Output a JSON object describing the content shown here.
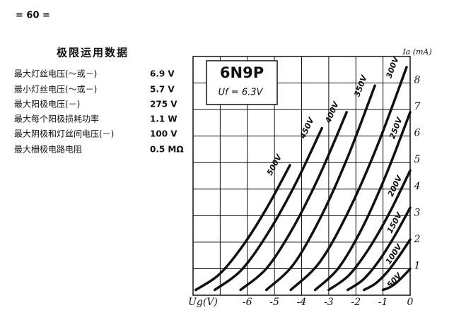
{
  "page_number": "= 60 =",
  "table": {
    "title": "极限运用数据",
    "rows": [
      [
        "最大灯丝电压(～或－)",
        "6.9 V"
      ],
      [
        "最小灯丝电压(～或－)",
        "5.7 V"
      ],
      [
        "最大阳极电压(－)",
        "275 V"
      ],
      [
        "最大每个阳极损耗功率",
        "1.1 W"
      ],
      [
        "最大阴极和灯丝间电压(－)",
        "100 V"
      ],
      [
        "最大栅极电路电阻",
        "0.5 MΩ"
      ]
    ]
  },
  "chart_data": {
    "type": "line",
    "title": "6N9P",
    "subtitle": "Uf = 6.3V",
    "y_label": "Ia (mA)",
    "xlim": [
      -8,
      0
    ],
    "ylim": [
      0,
      9
    ],
    "xticks": [
      {
        "value": -7,
        "label": "Ug(V)"
      },
      -6,
      -5,
      -4,
      -3,
      -2,
      -1,
      0
    ],
    "yticks": [
      1,
      2,
      3,
      4,
      5,
      6,
      7,
      8
    ],
    "grid": true,
    "color": "#111111",
    "series": [
      {
        "name": "500V",
        "x": [
          -7.9,
          -7.03,
          -6.17,
          -5.3,
          -4.43
        ],
        "values": [
          0.2,
          0.79,
          1.86,
          3.26,
          4.9
        ]
      },
      {
        "name": "450V",
        "x": [
          -7.2,
          -6.21,
          -5.23,
          -4.24,
          -3.25
        ],
        "values": [
          0.2,
          0.96,
          2.36,
          4.17,
          6.3
        ]
      },
      {
        "name": "400V",
        "x": [
          -6.25,
          -5.27,
          -4.3,
          -3.32,
          -2.34
        ],
        "values": [
          0.2,
          1.04,
          2.57,
          4.56,
          6.9
        ]
      },
      {
        "name": "350V",
        "x": [
          -5.3,
          -4.3,
          -3.3,
          -2.3,
          -1.3
        ],
        "values": [
          0.2,
          1.16,
          2.93,
          5.21,
          7.9
        ]
      },
      {
        "name": "300V",
        "x": [
          -4.4,
          -3.33,
          -2.27,
          -1.2,
          -0.13
        ],
        "values": [
          0.2,
          1.25,
          3.17,
          5.66,
          8.6
        ]
      },
      {
        "name": "250V",
        "x": [
          -3.5,
          -2.63,
          -1.75,
          -0.88,
          0
        ],
        "values": [
          0.2,
          1.04,
          2.57,
          4.56,
          6.9
        ]
      },
      {
        "name": "200V",
        "x": [
          -3,
          -2.25,
          -1.5,
          -0.75,
          0
        ],
        "values": [
          0.2,
          0.76,
          1.79,
          3.13,
          4.7
        ]
      },
      {
        "name": "150V",
        "x": [
          -2.3,
          -1.73,
          -1.15,
          -0.58,
          0
        ],
        "values": [
          0.2,
          0.59,
          1.3,
          2.22,
          3.3
        ]
      },
      {
        "name": "100V",
        "x": [
          -1.7,
          -1.28,
          -0.85,
          -0.43,
          0
        ],
        "values": [
          0.2,
          0.44,
          0.87,
          1.44,
          2.1
        ]
      },
      {
        "name": "50V",
        "x": [
          -1,
          -0.75,
          -0.5,
          -0.25,
          0
        ],
        "values": [
          0.2,
          0.3,
          0.48,
          0.72,
          1.0
        ]
      }
    ]
  }
}
